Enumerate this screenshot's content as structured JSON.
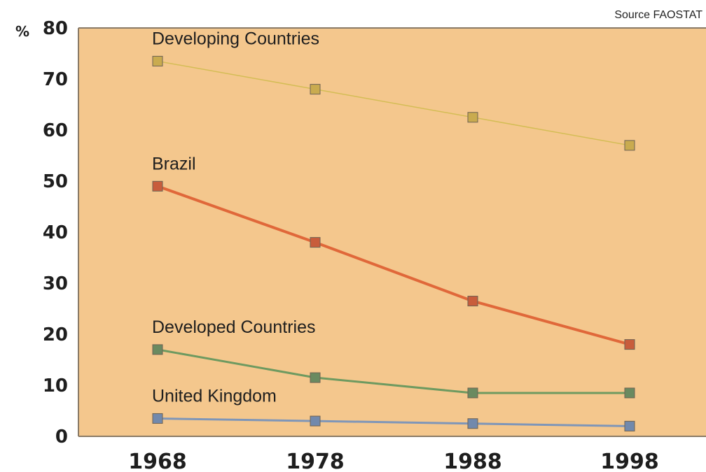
{
  "source": "Source FAOSTAT",
  "chart_data": {
    "type": "line",
    "title": "",
    "xlabel": "",
    "ylabel": "%",
    "x": [
      "1968",
      "1978",
      "1988",
      "1998"
    ],
    "ylim": [
      0,
      80
    ],
    "yticks": [
      "0",
      "10",
      "20",
      "30",
      "40",
      "50",
      "60",
      "70",
      "80"
    ],
    "grid": false,
    "background_color": "#f4c78d",
    "series": [
      {
        "name": "Developing Countries",
        "values": [
          73.5,
          68,
          62.5,
          57
        ],
        "color": "#d4bd55",
        "marker_color": "#c9ab4f"
      },
      {
        "name": "Brazil",
        "values": [
          49,
          38,
          26.5,
          18
        ],
        "color": "#e0683a",
        "marker_color": "#c85d3c"
      },
      {
        "name": "Developed Countries",
        "values": [
          17,
          11.5,
          8.5,
          8.5
        ],
        "color": "#6e9a60",
        "marker_color": "#6a8a60"
      },
      {
        "name": "United Kingdom",
        "values": [
          3.5,
          3,
          2.5,
          2
        ],
        "color": "#7f96b8",
        "marker_color": "#7289ac"
      }
    ]
  }
}
